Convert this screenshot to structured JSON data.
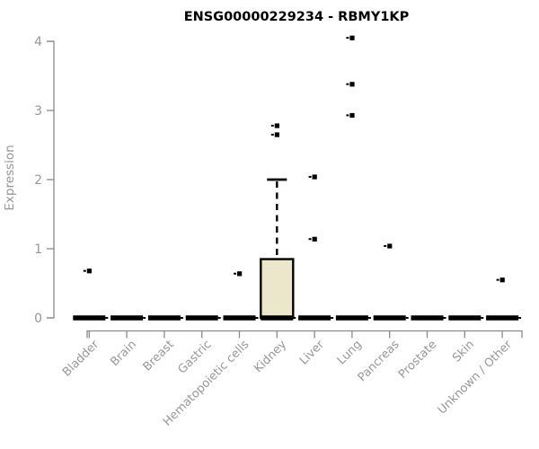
{
  "page": {
    "background": "#ffffff"
  },
  "chart_data": {
    "type": "boxplot",
    "title": "ENSG00000229234 - RBMY1KP",
    "xlabel": "",
    "ylabel": "Expression",
    "ylim": [
      0,
      4
    ],
    "yticks": [
      0,
      1,
      2,
      3,
      4
    ],
    "grid": false,
    "legend": null,
    "categories": [
      "Bladder",
      "Brain",
      "Breast",
      "Gastric",
      "Hematopoietic cells",
      "Kidney",
      "Liver",
      "Lung",
      "Pancreas",
      "Prostate",
      "Skin",
      "Unknown / Other"
    ],
    "boxes": [
      {
        "category": "Bladder",
        "median": 0,
        "q1": 0,
        "q3": 0,
        "whisker_low": 0,
        "whisker_high": 0,
        "outliers": [
          0.68
        ]
      },
      {
        "category": "Brain",
        "median": 0,
        "q1": 0,
        "q3": 0,
        "whisker_low": 0,
        "whisker_high": 0,
        "outliers": []
      },
      {
        "category": "Breast",
        "median": 0,
        "q1": 0,
        "q3": 0,
        "whisker_low": 0,
        "whisker_high": 0,
        "outliers": []
      },
      {
        "category": "Gastric",
        "median": 0,
        "q1": 0,
        "q3": 0,
        "whisker_low": 0,
        "whisker_high": 0,
        "outliers": []
      },
      {
        "category": "Hematopoietic cells",
        "median": 0,
        "q1": 0,
        "q3": 0,
        "whisker_low": 0,
        "whisker_high": 0,
        "outliers": [
          0.64
        ]
      },
      {
        "category": "Kidney",
        "median": 0,
        "q1": 0,
        "q3": 0.85,
        "whisker_low": 0,
        "whisker_high": 2.0,
        "outliers": [
          2.65,
          2.78
        ]
      },
      {
        "category": "Liver",
        "median": 0,
        "q1": 0,
        "q3": 0,
        "whisker_low": 0,
        "whisker_high": 0,
        "outliers": [
          1.14,
          2.04
        ]
      },
      {
        "category": "Lung",
        "median": 0,
        "q1": 0,
        "q3": 0,
        "whisker_low": 0,
        "whisker_high": 0,
        "outliers": [
          2.93,
          3.38,
          4.05
        ]
      },
      {
        "category": "Pancreas",
        "median": 0,
        "q1": 0,
        "q3": 0,
        "whisker_low": 0,
        "whisker_high": 0,
        "outliers": [
          1.04
        ]
      },
      {
        "category": "Prostate",
        "median": 0,
        "q1": 0,
        "q3": 0,
        "whisker_low": 0,
        "whisker_high": 0,
        "outliers": []
      },
      {
        "category": "Skin",
        "median": 0,
        "q1": 0,
        "q3": 0,
        "whisker_low": 0,
        "whisker_high": 0,
        "outliers": []
      },
      {
        "category": "Unknown / Other",
        "median": 0,
        "q1": 0,
        "q3": 0,
        "whisker_low": 0,
        "whisker_high": 0,
        "outliers": [
          0.55
        ]
      }
    ],
    "styles": {
      "box_fill": "#ECE6CA",
      "box_stroke": "#000000",
      "median_color": "#000000",
      "whisker_color": "#000000",
      "outlier_color": "#000000",
      "axis_color": "#8A8A8A",
      "label_color": "#979797",
      "title_color": "#000000"
    }
  }
}
